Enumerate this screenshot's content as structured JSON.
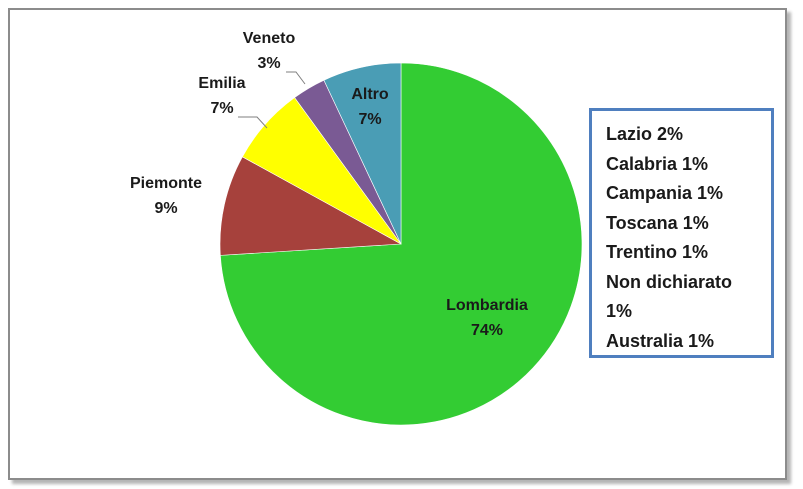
{
  "chart_data": {
    "type": "pie",
    "title": "",
    "slices": [
      {
        "label": "Lombardia",
        "pct_label": "74%",
        "value": 74,
        "color": "#33cc33"
      },
      {
        "label": "Piemonte",
        "pct_label": "9%",
        "value": 9,
        "color": "#a6413c"
      },
      {
        "label": "Emilia",
        "pct_label": "7%",
        "value": 7,
        "color": "#ffff00"
      },
      {
        "label": "Veneto",
        "pct_label": "3%",
        "value": 3,
        "color": "#7a5a94"
      },
      {
        "label": "Altro",
        "pct_label": "7%",
        "value": 7,
        "color": "#4a9db5"
      }
    ],
    "start": "12 o'clock",
    "direction": "clockwise"
  },
  "details_box": {
    "border_color": "#4f7fbf",
    "lines": [
      "Lazio 2%",
      "Calabria  1%",
      "Campania  1%",
      "Toscana  1%",
      "Trentino 1%",
      "Non dichiarato",
      "1%",
      "Australia 1%"
    ]
  }
}
